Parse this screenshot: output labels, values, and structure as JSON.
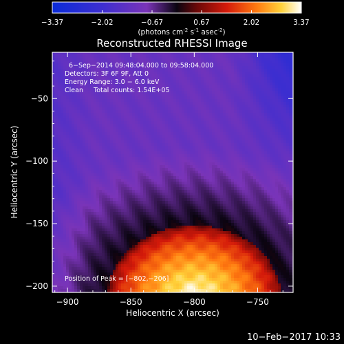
{
  "chart_data": {
    "type": "heatmap",
    "title": "Reconstructed RHESSI Image",
    "colorbar": {
      "ticks": [
        "-3.37",
        "-2.02",
        "-0.67",
        "0.67",
        "2.02",
        "3.37"
      ],
      "min": -3.37,
      "max": 3.37,
      "units_text": "(photons cm",
      "units_exp1": "-2",
      "units_mid": " s",
      "units_exp2": "-1",
      "units_tail": " asec",
      "units_exp3": "-2",
      "units_close": ")"
    },
    "xlabel": "Heliocentric X (arcsec)",
    "ylabel": "Heliocentric Y (arcsec)",
    "xlim": [
      -912,
      -722
    ],
    "ylim": [
      -205,
      -13
    ],
    "xticks": [
      {
        "value": -900,
        "label": "−900"
      },
      {
        "value": -850,
        "label": "−850"
      },
      {
        "value": -800,
        "label": "−800"
      },
      {
        "value": -750,
        "label": "−750"
      }
    ],
    "yticks": [
      {
        "value": -50,
        "label": "−50"
      },
      {
        "value": -100,
        "label": "−100"
      },
      {
        "value": -150,
        "label": "−150"
      },
      {
        "value": -200,
        "label": "−200"
      }
    ],
    "annotations": [
      "6−Sep−2014 09:48:04.000 to 09:58:04.000",
      "Detectors: 3F 6F 9F, Att 0",
      "Energy Range: 3.0 − 6.0 keV",
      "Clean     Total counts: 1.54E+05"
    ],
    "peak_text": "Position of Peak = [−802,−206]",
    "peak": {
      "x": -802,
      "y": -206
    },
    "source": {
      "peak_x": -802,
      "peak_y": -206,
      "dark_ring_center_x": -800,
      "dark_ring_center_y": -209,
      "dark_ring_radius": 72
    }
  },
  "footer": {
    "timestamp": "10−Feb−2017 10:33"
  },
  "colors": {
    "background": "#000000",
    "foreground": "#ffffff",
    "low": "#0a2bd8",
    "mid_low": "#6a2cb0",
    "mid": "#0a0410",
    "mid_high": "#c0100a",
    "high": "#ffffff"
  }
}
